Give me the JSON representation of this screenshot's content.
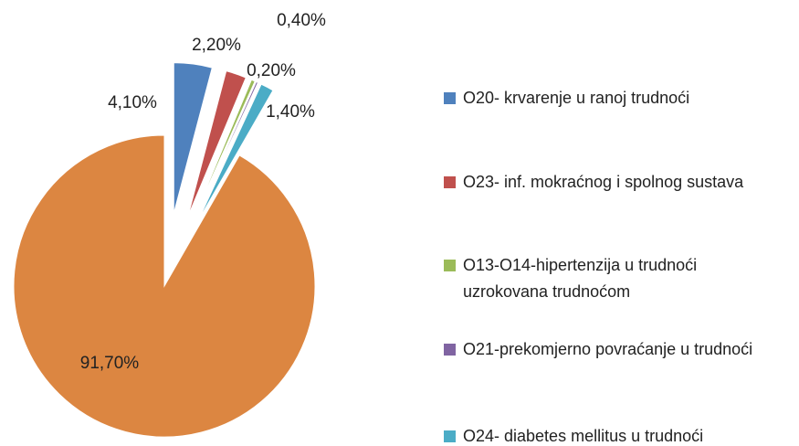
{
  "chart_data": {
    "type": "pie",
    "categories": [
      "O20- krvarenje u ranoj trudnoći",
      "O23- inf. mokraćnog i spolnog sustava",
      "O13-O14-hipertenzija u trudnoći uzrokovana trudnoćom",
      "O21-prekomjerno povraćanje u trudnoći",
      "O24- diabetes mellitus u trudnoći",
      null
    ],
    "values": [
      4.1,
      2.2,
      0.4,
      0.2,
      1.4,
      91.7
    ],
    "value_labels": [
      "4,10%",
      "2,20%",
      "0,40%",
      "0,20%",
      "1,40%",
      "91,70%"
    ],
    "colors": [
      "#4f81bd",
      "#c0504d",
      "#9bbb59",
      "#8064a2",
      "#4bacc6",
      "#dc8641"
    ],
    "legend": "right"
  }
}
